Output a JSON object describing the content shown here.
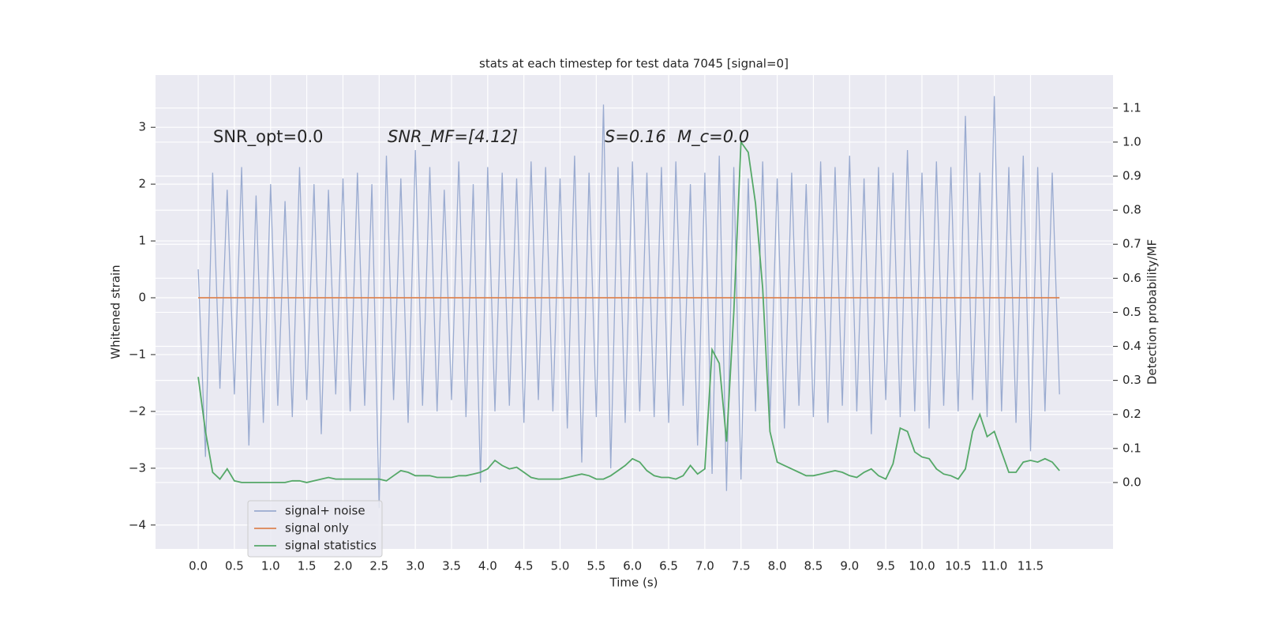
{
  "chart_data": {
    "type": "line",
    "title": "stats at each timestep for test data 7045 [signal=0]",
    "xlabel": "Time (s)",
    "ylabel": "Whitened strain",
    "y2label": "Detection probability/MF",
    "annotations": [
      "SNR_opt=0.0",
      "SNR_MF=[4.12]",
      "S=0.16",
      "M_c=0.0"
    ],
    "x": [
      0,
      0.1,
      0.2,
      0.3,
      0.4,
      0.5,
      0.6,
      0.7,
      0.8,
      0.9,
      1,
      1.1,
      1.2,
      1.3,
      1.4,
      1.5,
      1.6,
      1.7,
      1.8,
      1.9,
      2,
      2.1,
      2.2,
      2.3,
      2.4,
      2.5,
      2.6,
      2.7,
      2.8,
      2.9,
      3,
      3.1,
      3.2,
      3.3,
      3.4,
      3.5,
      3.6,
      3.7,
      3.8,
      3.9,
      4,
      4.1,
      4.2,
      4.3,
      4.4,
      4.5,
      4.6,
      4.7,
      4.8,
      4.9,
      5,
      5.1,
      5.2,
      5.3,
      5.4,
      5.5,
      5.6,
      5.7,
      5.8,
      5.9,
      6,
      6.1,
      6.2,
      6.3,
      6.4,
      6.5,
      6.6,
      6.7,
      6.8,
      6.9,
      7,
      7.1,
      7.2,
      7.3,
      7.4,
      7.5,
      7.6,
      7.7,
      7.8,
      7.9,
      8,
      8.1,
      8.2,
      8.3,
      8.4,
      8.5,
      8.6,
      8.7,
      8.8,
      8.9,
      9,
      9.1,
      9.2,
      9.3,
      9.4,
      9.5,
      9.6,
      9.7,
      9.8,
      9.9,
      10,
      10.1,
      10.2,
      10.3,
      10.4,
      10.5,
      10.6,
      10.7,
      10.8,
      10.9,
      11,
      11.1,
      11.2,
      11.3,
      11.4,
      11.5,
      11.6,
      11.7,
      11.8,
      11.9
    ],
    "series": [
      {
        "name": "signal+ noise",
        "color": "#9aabd0",
        "values": [
          0.5,
          -2.8,
          2.2,
          -1.6,
          1.9,
          -1.7,
          2.3,
          -2.6,
          1.8,
          -2.2,
          2.0,
          -1.9,
          1.7,
          -2.1,
          2.3,
          -1.8,
          2.0,
          -2.4,
          1.9,
          -1.7,
          2.1,
          -2.0,
          2.2,
          -1.9,
          2.0,
          -3.7,
          2.5,
          -1.8,
          2.1,
          -2.2,
          2.6,
          -1.9,
          2.3,
          -2.0,
          1.9,
          -1.8,
          2.4,
          -2.1,
          2.0,
          -3.25,
          2.3,
          -2.0,
          2.2,
          -1.9,
          2.1,
          -2.2,
          2.4,
          -1.8,
          2.3,
          -2.0,
          2.1,
          -2.3,
          2.5,
          -2.9,
          2.2,
          -2.1,
          3.4,
          -3.0,
          2.3,
          -2.2,
          2.4,
          -2.0,
          2.2,
          -2.1,
          2.3,
          -2.2,
          2.4,
          -1.9,
          2.0,
          -2.6,
          2.2,
          -3.1,
          2.5,
          -3.4,
          2.3,
          -3.2,
          2.1,
          -2.0,
          2.4,
          -2.2,
          2.1,
          -2.3,
          2.2,
          -1.9,
          2.0,
          -2.1,
          2.4,
          -2.2,
          2.3,
          -1.9,
          2.5,
          -2.0,
          2.1,
          -2.4,
          2.3,
          -1.8,
          2.2,
          -2.1,
          2.6,
          -2.0,
          2.2,
          -2.3,
          2.4,
          -1.9,
          2.3,
          -2.0,
          3.2,
          -1.8,
          2.2,
          -2.1,
          3.55,
          -2.0,
          2.3,
          -2.2,
          2.5,
          -2.7,
          2.3,
          -2.0,
          2.2,
          -1.7
        ]
      },
      {
        "name": "signal only",
        "color": "#dd8452",
        "values": [
          0,
          0,
          0,
          0,
          0,
          0,
          0,
          0,
          0,
          0,
          0,
          0,
          0,
          0,
          0,
          0,
          0,
          0,
          0,
          0,
          0,
          0,
          0,
          0,
          0,
          0,
          0,
          0,
          0,
          0,
          0,
          0,
          0,
          0,
          0,
          0,
          0,
          0,
          0,
          0,
          0,
          0,
          0,
          0,
          0,
          0,
          0,
          0,
          0,
          0,
          0,
          0,
          0,
          0,
          0,
          0,
          0,
          0,
          0,
          0,
          0,
          0,
          0,
          0,
          0,
          0,
          0,
          0,
          0,
          0,
          0,
          0,
          0,
          0,
          0,
          0,
          0,
          0,
          0,
          0,
          0,
          0,
          0,
          0,
          0,
          0,
          0,
          0,
          0,
          0,
          0,
          0,
          0,
          0,
          0,
          0,
          0,
          0,
          0,
          0,
          0,
          0,
          0,
          0,
          0,
          0,
          0,
          0,
          0,
          0,
          0,
          0,
          0,
          0,
          0,
          0,
          0,
          0,
          0,
          0
        ]
      },
      {
        "name": "signal statistics",
        "color": "#55a868",
        "axis": "y2",
        "values": [
          0.31,
          0.15,
          0.03,
          0.01,
          0.04,
          0.005,
          0.0,
          0.0,
          0.0,
          0.0,
          0.0,
          0.0,
          0.0,
          0.005,
          0.005,
          0.0,
          0.005,
          0.01,
          0.015,
          0.01,
          0.01,
          0.01,
          0.01,
          0.01,
          0.01,
          0.01,
          0.005,
          0.02,
          0.035,
          0.03,
          0.02,
          0.02,
          0.02,
          0.015,
          0.015,
          0.015,
          0.02,
          0.02,
          0.025,
          0.03,
          0.04,
          0.065,
          0.05,
          0.04,
          0.045,
          0.03,
          0.015,
          0.01,
          0.01,
          0.01,
          0.01,
          0.015,
          0.02,
          0.025,
          0.02,
          0.01,
          0.01,
          0.02,
          0.035,
          0.05,
          0.07,
          0.06,
          0.035,
          0.02,
          0.015,
          0.015,
          0.01,
          0.02,
          0.05,
          0.025,
          0.04,
          0.39,
          0.35,
          0.12,
          0.5,
          1.0,
          0.97,
          0.82,
          0.57,
          0.15,
          0.06,
          0.05,
          0.04,
          0.03,
          0.02,
          0.02,
          0.025,
          0.03,
          0.035,
          0.03,
          0.02,
          0.015,
          0.03,
          0.04,
          0.02,
          0.01,
          0.055,
          0.16,
          0.15,
          0.09,
          0.075,
          0.07,
          0.04,
          0.025,
          0.02,
          0.01,
          0.04,
          0.15,
          0.2,
          0.135,
          0.15,
          0.09,
          0.03,
          0.03,
          0.06,
          0.065,
          0.06,
          0.07,
          0.06,
          0.035
        ]
      }
    ],
    "xlim": [
      -0.59,
      12.64
    ],
    "ylim": [
      -4.42,
      3.92
    ],
    "y2lim": [
      -0.195,
      1.197
    ],
    "xticks": [
      {
        "value": 0,
        "label": "0.0"
      },
      0.5,
      {
        "value": 1,
        "label": "1.0"
      },
      1.5,
      {
        "value": 2,
        "label": "2.0"
      },
      2.5,
      {
        "value": 3,
        "label": "3.0"
      },
      3.5,
      {
        "value": 4,
        "label": "4.0"
      },
      4.5,
      {
        "value": 5,
        "label": "5.0"
      },
      5.5,
      {
        "value": 6,
        "label": "6.0"
      },
      6.5,
      {
        "value": 7,
        "label": "7.0"
      },
      7.5,
      {
        "value": 8,
        "label": "8.0"
      },
      8.5,
      {
        "value": 9,
        "label": "9.0"
      },
      9.5,
      {
        "value": 10,
        "label": "10.0"
      },
      10.5,
      {
        "value": 11,
        "label": "11.0"
      },
      11.5
    ],
    "yticks": [
      {
        "value": -4,
        "label": "−4"
      },
      {
        "value": -3,
        "label": "−3"
      },
      {
        "value": -2,
        "label": "−2"
      },
      {
        "value": -1,
        "label": "−1"
      },
      0,
      1,
      2,
      3
    ],
    "y2ticks": [
      {
        "value": 0,
        "label": "0.0"
      },
      0.1,
      0.2,
      0.3,
      0.4,
      0.5,
      0.6,
      0.7,
      0.8,
      0.9,
      {
        "value": 1,
        "label": "1.0"
      },
      1.1
    ],
    "grid": true,
    "legend": "lower left"
  }
}
